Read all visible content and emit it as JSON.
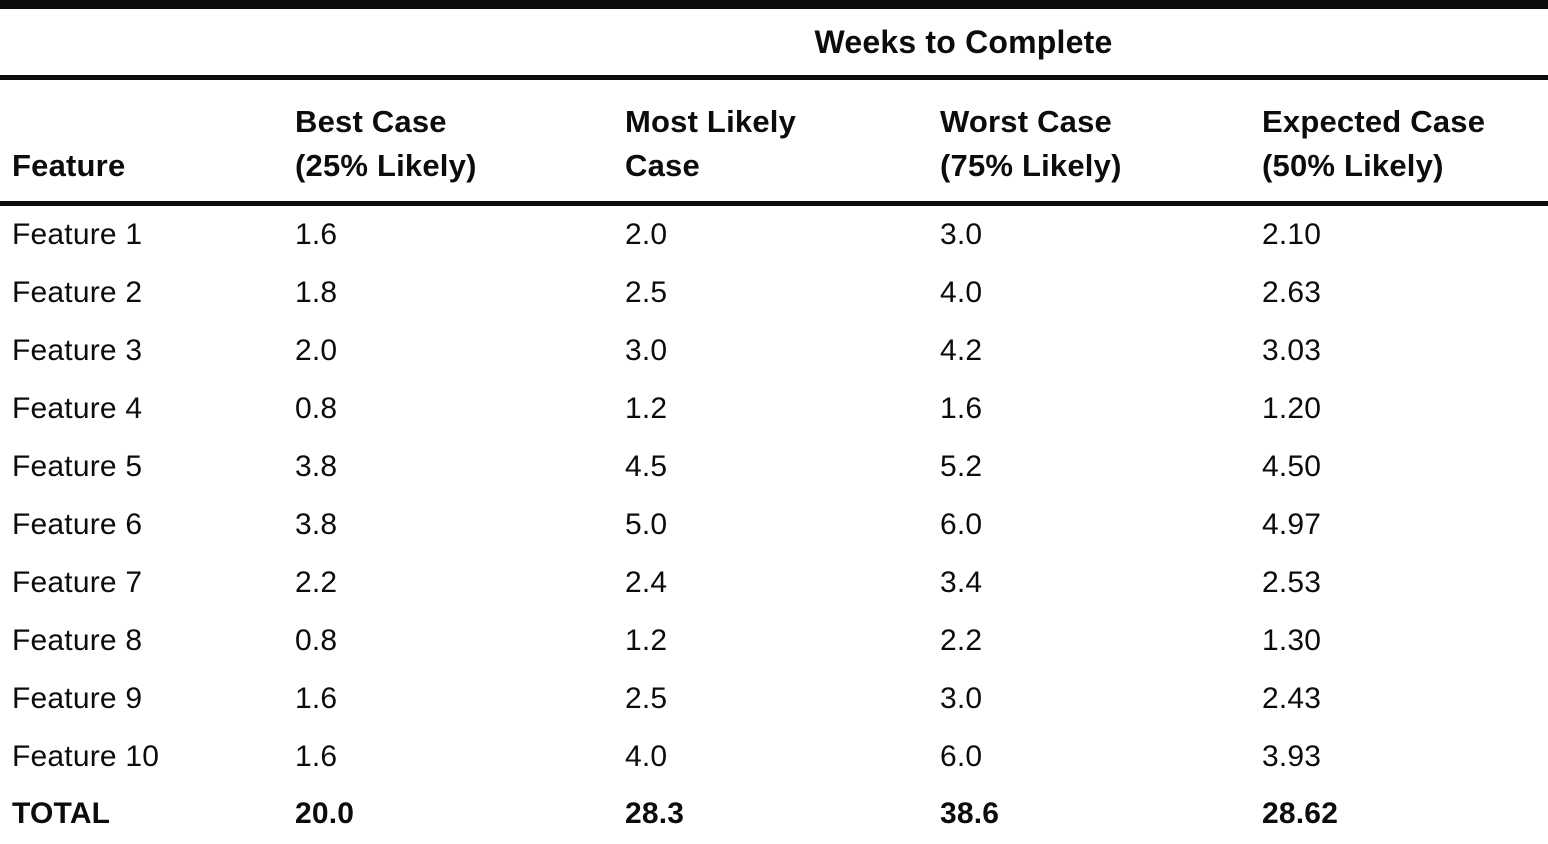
{
  "table": {
    "spanner": "Weeks to Complete",
    "header": {
      "feature": "Feature",
      "best_line1": "Best Case",
      "best_line2": "(25% Likely)",
      "most_likely_line1": "Most Likely",
      "most_likely_line2": "Case",
      "worst_line1": "Worst Case",
      "worst_line2": "(75% Likely)",
      "expected_line1": "Expected Case",
      "expected_line2": "(50% Likely)"
    },
    "rows": [
      {
        "feature": "Feature 1",
        "best": "1.6",
        "most_likely": "2.0",
        "worst": "3.0",
        "expected": "2.10"
      },
      {
        "feature": "Feature 2",
        "best": "1.8",
        "most_likely": "2.5",
        "worst": "4.0",
        "expected": "2.63"
      },
      {
        "feature": "Feature 3",
        "best": "2.0",
        "most_likely": "3.0",
        "worst": "4.2",
        "expected": "3.03"
      },
      {
        "feature": "Feature 4",
        "best": "0.8",
        "most_likely": "1.2",
        "worst": "1.6",
        "expected": "1.20"
      },
      {
        "feature": "Feature 5",
        "best": "3.8",
        "most_likely": "4.5",
        "worst": "5.2",
        "expected": "4.50"
      },
      {
        "feature": "Feature 6",
        "best": "3.8",
        "most_likely": "5.0",
        "worst": "6.0",
        "expected": "4.97"
      },
      {
        "feature": "Feature 7",
        "best": "2.2",
        "most_likely": "2.4",
        "worst": "3.4",
        "expected": "2.53"
      },
      {
        "feature": "Feature 8",
        "best": "0.8",
        "most_likely": "1.2",
        "worst": "2.2",
        "expected": "1.30"
      },
      {
        "feature": "Feature 9",
        "best": "1.6",
        "most_likely": "2.5",
        "worst": "3.0",
        "expected": "2.43"
      },
      {
        "feature": "Feature 10",
        "best": "1.6",
        "most_likely": "4.0",
        "worst": "6.0",
        "expected": "3.93"
      }
    ],
    "total": {
      "feature": "TOTAL",
      "best": "20.0",
      "most_likely": "28.3",
      "worst": "38.6",
      "expected": "28.62"
    },
    "colors": {
      "ink": "#0c0c0c",
      "paper": "#ffffff"
    }
  }
}
